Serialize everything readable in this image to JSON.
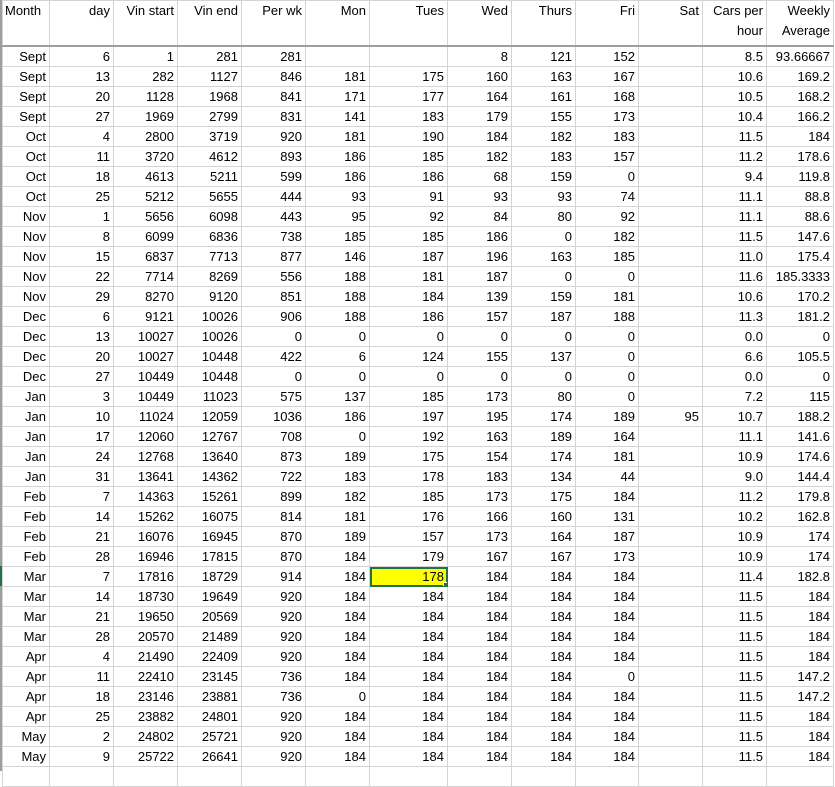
{
  "sheet": {
    "headers": [
      "Month",
      "day",
      "Vin start",
      "Vin end",
      "Per wk",
      "Mon",
      "Tues",
      "Wed",
      "Thurs",
      "Fri",
      "Sat",
      "Cars per hour",
      "Weekly Average"
    ],
    "selected_cell": {
      "row_month": "Mar",
      "row_day": "7",
      "column": "Tues",
      "fill_color": "#ffff00"
    },
    "accent_color": "#217346",
    "rows": [
      [
        "Sept",
        "6",
        "1",
        "281",
        "281",
        "",
        "",
        "8",
        "121",
        "152",
        "",
        "8.5",
        "93.66667"
      ],
      [
        "Sept",
        "13",
        "282",
        "1127",
        "846",
        "181",
        "175",
        "160",
        "163",
        "167",
        "",
        "10.6",
        "169.2"
      ],
      [
        "Sept",
        "20",
        "1128",
        "1968",
        "841",
        "171",
        "177",
        "164",
        "161",
        "168",
        "",
        "10.5",
        "168.2"
      ],
      [
        "Sept",
        "27",
        "1969",
        "2799",
        "831",
        "141",
        "183",
        "179",
        "155",
        "173",
        "",
        "10.4",
        "166.2"
      ],
      [
        "Oct",
        "4",
        "2800",
        "3719",
        "920",
        "181",
        "190",
        "184",
        "182",
        "183",
        "",
        "11.5",
        "184"
      ],
      [
        "Oct",
        "11",
        "3720",
        "4612",
        "893",
        "186",
        "185",
        "182",
        "183",
        "157",
        "",
        "11.2",
        "178.6"
      ],
      [
        "Oct",
        "18",
        "4613",
        "5211",
        "599",
        "186",
        "186",
        "68",
        "159",
        "0",
        "",
        "9.4",
        "119.8"
      ],
      [
        "Oct",
        "25",
        "5212",
        "5655",
        "444",
        "93",
        "91",
        "93",
        "93",
        "74",
        "",
        "11.1",
        "88.8"
      ],
      [
        "Nov",
        "1",
        "5656",
        "6098",
        "443",
        "95",
        "92",
        "84",
        "80",
        "92",
        "",
        "11.1",
        "88.6"
      ],
      [
        "Nov",
        "8",
        "6099",
        "6836",
        "738",
        "185",
        "185",
        "186",
        "0",
        "182",
        "",
        "11.5",
        "147.6"
      ],
      [
        "Nov",
        "15",
        "6837",
        "7713",
        "877",
        "146",
        "187",
        "196",
        "163",
        "185",
        "",
        "11.0",
        "175.4"
      ],
      [
        "Nov",
        "22",
        "7714",
        "8269",
        "556",
        "188",
        "181",
        "187",
        "0",
        "0",
        "",
        "11.6",
        "185.3333"
      ],
      [
        "Nov",
        "29",
        "8270",
        "9120",
        "851",
        "188",
        "184",
        "139",
        "159",
        "181",
        "",
        "10.6",
        "170.2"
      ],
      [
        "Dec",
        "6",
        "9121",
        "10026",
        "906",
        "188",
        "186",
        "157",
        "187",
        "188",
        "",
        "11.3",
        "181.2"
      ],
      [
        "Dec",
        "13",
        "10027",
        "10026",
        "0",
        "0",
        "0",
        "0",
        "0",
        "0",
        "",
        "0.0",
        "0"
      ],
      [
        "Dec",
        "20",
        "10027",
        "10448",
        "422",
        "6",
        "124",
        "155",
        "137",
        "0",
        "",
        "6.6",
        "105.5"
      ],
      [
        "Dec",
        "27",
        "10449",
        "10448",
        "0",
        "0",
        "0",
        "0",
        "0",
        "0",
        "",
        "0.0",
        "0"
      ],
      [
        "Jan",
        "3",
        "10449",
        "11023",
        "575",
        "137",
        "185",
        "173",
        "80",
        "0",
        "",
        "7.2",
        "115"
      ],
      [
        "Jan",
        "10",
        "11024",
        "12059",
        "1036",
        "186",
        "197",
        "195",
        "174",
        "189",
        "95",
        "10.7",
        "188.2"
      ],
      [
        "Jan",
        "17",
        "12060",
        "12767",
        "708",
        "0",
        "192",
        "163",
        "189",
        "164",
        "",
        "11.1",
        "141.6"
      ],
      [
        "Jan",
        "24",
        "12768",
        "13640",
        "873",
        "189",
        "175",
        "154",
        "174",
        "181",
        "",
        "10.9",
        "174.6"
      ],
      [
        "Jan",
        "31",
        "13641",
        "14362",
        "722",
        "183",
        "178",
        "183",
        "134",
        "44",
        "",
        "9.0",
        "144.4"
      ],
      [
        "Feb",
        "7",
        "14363",
        "15261",
        "899",
        "182",
        "185",
        "173",
        "175",
        "184",
        "",
        "11.2",
        "179.8"
      ],
      [
        "Feb",
        "14",
        "15262",
        "16075",
        "814",
        "181",
        "176",
        "166",
        "160",
        "131",
        "",
        "10.2",
        "162.8"
      ],
      [
        "Feb",
        "21",
        "16076",
        "16945",
        "870",
        "189",
        "157",
        "173",
        "164",
        "187",
        "",
        "10.9",
        "174"
      ],
      [
        "Feb",
        "28",
        "16946",
        "17815",
        "870",
        "184",
        "179",
        "167",
        "167",
        "173",
        "",
        "10.9",
        "174"
      ],
      [
        "Mar",
        "7",
        "17816",
        "18729",
        "914",
        "184",
        "178",
        "184",
        "184",
        "184",
        "",
        "11.4",
        "182.8"
      ],
      [
        "Mar",
        "14",
        "18730",
        "19649",
        "920",
        "184",
        "184",
        "184",
        "184",
        "184",
        "",
        "11.5",
        "184"
      ],
      [
        "Mar",
        "21",
        "19650",
        "20569",
        "920",
        "184",
        "184",
        "184",
        "184",
        "184",
        "",
        "11.5",
        "184"
      ],
      [
        "Mar",
        "28",
        "20570",
        "21489",
        "920",
        "184",
        "184",
        "184",
        "184",
        "184",
        "",
        "11.5",
        "184"
      ],
      [
        "Apr",
        "4",
        "21490",
        "22409",
        "920",
        "184",
        "184",
        "184",
        "184",
        "184",
        "",
        "11.5",
        "184"
      ],
      [
        "Apr",
        "11",
        "22410",
        "23145",
        "736",
        "184",
        "184",
        "184",
        "184",
        "0",
        "",
        "11.5",
        "147.2"
      ],
      [
        "Apr",
        "18",
        "23146",
        "23881",
        "736",
        "0",
        "184",
        "184",
        "184",
        "184",
        "",
        "11.5",
        "147.2"
      ],
      [
        "Apr",
        "25",
        "23882",
        "24801",
        "920",
        "184",
        "184",
        "184",
        "184",
        "184",
        "",
        "11.5",
        "184"
      ],
      [
        "May",
        "2",
        "24802",
        "25721",
        "920",
        "184",
        "184",
        "184",
        "184",
        "184",
        "",
        "11.5",
        "184"
      ],
      [
        "May",
        "9",
        "25722",
        "26641",
        "920",
        "184",
        "184",
        "184",
        "184",
        "184",
        "",
        "11.5",
        "184"
      ]
    ]
  }
}
